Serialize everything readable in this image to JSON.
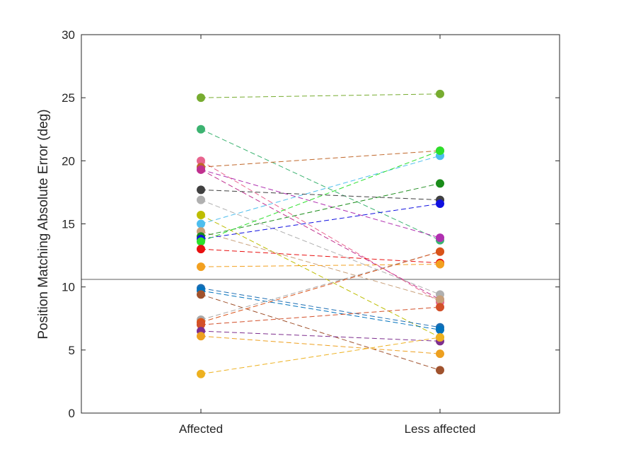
{
  "chart_data": {
    "type": "line",
    "title": "",
    "xlabel": "",
    "ylabel": "Position Matching Absolute Error (deg)",
    "categories": [
      "Affected",
      "Less affected"
    ],
    "ylim": [
      0,
      30
    ],
    "yticks": [
      0,
      5,
      10,
      15,
      20,
      25,
      30
    ],
    "grid": false,
    "legend": "none",
    "reference_line": {
      "y": 10.6
    },
    "series": [
      {
        "values": [
          25.0,
          25.3
        ],
        "color": "#77AC30"
      },
      {
        "values": [
          22.5,
          13.7
        ],
        "color": "#3CB371"
      },
      {
        "values": [
          20.0,
          8.8
        ],
        "color": "#E8648E"
      },
      {
        "values": [
          19.5,
          20.8
        ],
        "color": "#C0672A"
      },
      {
        "values": [
          19.3,
          13.9
        ],
        "color": "#B030B0"
      },
      {
        "values": [
          19.3,
          9.0
        ],
        "color": "#C0308E"
      },
      {
        "values": [
          17.7,
          16.9
        ],
        "color": "#404040"
      },
      {
        "values": [
          16.9,
          9.4
        ],
        "color": "#B0B0B0"
      },
      {
        "values": [
          15.7,
          6.0
        ],
        "color": "#BDBD00"
      },
      {
        "values": [
          15.0,
          20.4
        ],
        "color": "#4DBEEE"
      },
      {
        "values": [
          14.4,
          9.0
        ],
        "color": "#C8A07A"
      },
      {
        "values": [
          14.0,
          18.2
        ],
        "color": "#1A8C1A"
      },
      {
        "values": [
          13.8,
          16.6
        ],
        "color": "#1010E0"
      },
      {
        "values": [
          13.6,
          20.8
        ],
        "color": "#2CE02C"
      },
      {
        "values": [
          13.0,
          11.9
        ],
        "color": "#E81010"
      },
      {
        "values": [
          11.6,
          11.8
        ],
        "color": "#F2A020"
      },
      {
        "values": [
          9.9,
          6.8
        ],
        "color": "#1C6EB4"
      },
      {
        "values": [
          9.7,
          6.6
        ],
        "color": "#0072BD"
      },
      {
        "values": [
          9.4,
          3.4
        ],
        "color": "#A0522D"
      },
      {
        "values": [
          7.4,
          12.8
        ],
        "color": "#A9A9A9"
      },
      {
        "values": [
          7.2,
          12.8
        ],
        "color": "#D95319"
      },
      {
        "values": [
          7.0,
          8.4
        ],
        "color": "#D2502A"
      },
      {
        "values": [
          6.5,
          5.7
        ],
        "color": "#7E2F8E"
      },
      {
        "values": [
          6.1,
          4.7
        ],
        "color": "#EDA020"
      },
      {
        "values": [
          3.1,
          6.0
        ],
        "color": "#EDB120"
      }
    ]
  }
}
